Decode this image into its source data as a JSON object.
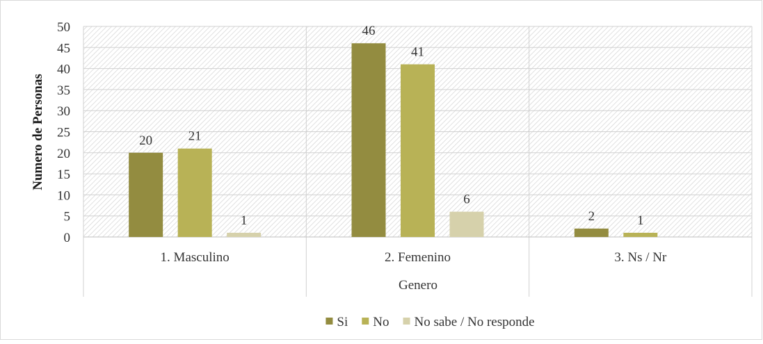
{
  "chart_data": {
    "type": "bar",
    "title": "",
    "xlabel": "Genero",
    "ylabel": "Numero de Personas",
    "ylim": [
      0,
      50
    ],
    "yticks": [
      0,
      5,
      10,
      15,
      20,
      25,
      30,
      35,
      40,
      45,
      50
    ],
    "categories": [
      "1. Masculino",
      "2. Femenino",
      "3. Ns / Nr"
    ],
    "series": [
      {
        "name": "Si",
        "values": [
          20,
          46,
          2
        ],
        "color": "#938c40"
      },
      {
        "name": "No",
        "values": [
          21,
          41,
          1
        ],
        "color": "#b8b256"
      },
      {
        "name": "No sabe / No responde",
        "values": [
          1,
          6,
          null
        ],
        "color": "#d6d1ab"
      }
    ],
    "grid": true,
    "legend_position": "bottom",
    "plot_background": "hatched"
  }
}
